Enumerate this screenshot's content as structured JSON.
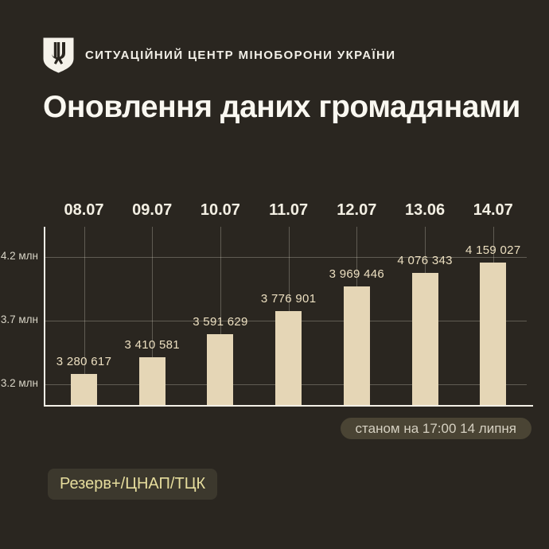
{
  "header": {
    "org_name": "СИТУАЦІЙНИЙ ЦЕНТР МІНОБОРОНИ УКРАЇНИ",
    "logo": "shield-trident-icon"
  },
  "title": "Оновлення даних громадянами",
  "chart_data": {
    "type": "bar",
    "title": "Оновлення даних громадянами",
    "categories": [
      "08.07",
      "09.07",
      "10.07",
      "11.07",
      "12.07",
      "13.06",
      "14.07"
    ],
    "values": [
      3280617,
      3410581,
      3591629,
      3776901,
      3969446,
      4076343,
      4159027
    ],
    "value_labels": [
      "3 280 617",
      "3 410 581",
      "3 591 629",
      "3 776 901",
      "3 969 446",
      "4 076 343",
      "4 159 027"
    ],
    "y_ticks": [
      {
        "label": "4.2 млн",
        "value": 4200000
      },
      {
        "label": "3.7 млн",
        "value": 3700000
      },
      {
        "label": "3.2 млн",
        "value": 3200000
      }
    ],
    "ylim": [
      3037500,
      4450000
    ],
    "xlabel": "",
    "ylabel": "",
    "grid": true,
    "legend_position": "none",
    "bar_color": "#e5d6b6"
  },
  "footer": {
    "as_of": "станом на 17:00 14 липня",
    "source_tag": "Резерв+/ЦНАП/ТЦК"
  },
  "colors": {
    "background": "#2a2620",
    "title_text": "#faf8f1",
    "bar": "#e5d6b6",
    "value_label": "#ecdfc0",
    "axis": "#f3f0e7",
    "gridline": "rgba(238,232,216,0.28)",
    "badge_bg": "#4a4434",
    "badge_text": "#d5d0c1",
    "tag_bg": "#3c382d",
    "tag_text": "#e6dd9d"
  }
}
